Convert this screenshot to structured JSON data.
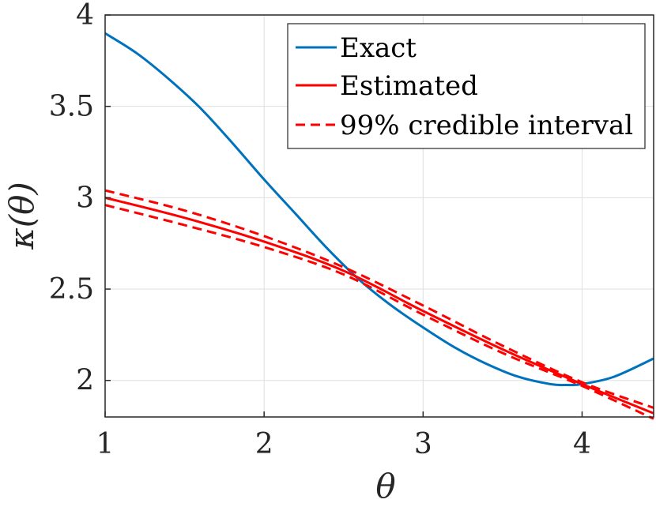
{
  "chart_data": {
    "type": "line",
    "title": "",
    "xlabel": "θ",
    "ylabel": "κ(θ)",
    "xlim": [
      1,
      4.45
    ],
    "ylim": [
      1.8,
      4
    ],
    "xticks": [
      1,
      2,
      3,
      4
    ],
    "yticks": [
      2,
      2.5,
      3,
      3.5,
      4
    ],
    "xtick_labels": [
      "1",
      "2",
      "3",
      "4"
    ],
    "ytick_labels": [
      "2",
      "2.5",
      "3",
      "3.5",
      "4"
    ],
    "grid": true,
    "legend_position": "top-right",
    "series": [
      {
        "name": "Exact",
        "color": "#0072BD",
        "style": "solid",
        "x": [
          1.0,
          1.2,
          1.4,
          1.6,
          1.8,
          2.0,
          2.2,
          2.4,
          2.6,
          2.8,
          3.0,
          3.2,
          3.4,
          3.6,
          3.8,
          3.9,
          4.0,
          4.2,
          4.45
        ],
        "y": [
          3.9,
          3.79,
          3.65,
          3.49,
          3.3,
          3.1,
          2.91,
          2.72,
          2.55,
          2.41,
          2.29,
          2.18,
          2.09,
          2.02,
          1.98,
          1.975,
          1.98,
          2.02,
          2.12
        ]
      },
      {
        "name": "Estimated",
        "color": "#FF0000",
        "style": "solid",
        "x": [
          1.0,
          1.5,
          2.0,
          2.5,
          3.0,
          3.5,
          4.0,
          4.45
        ],
        "y": [
          3.0,
          2.89,
          2.76,
          2.6,
          2.38,
          2.17,
          1.98,
          1.82
        ]
      },
      {
        "name": "99% credible interval",
        "color": "#FF0000",
        "style": "dashed",
        "x": [
          1.0,
          1.5,
          2.0,
          2.5,
          3.0,
          3.5,
          4.0,
          4.45
        ],
        "y": [
          3.04,
          2.93,
          2.79,
          2.62,
          2.41,
          2.19,
          1.99,
          1.85
        ]
      },
      {
        "name": "",
        "color": "#FF0000",
        "style": "dashed",
        "x": [
          1.0,
          1.5,
          2.0,
          2.5,
          3.0,
          3.5,
          4.0,
          4.45
        ],
        "y": [
          2.96,
          2.85,
          2.73,
          2.58,
          2.36,
          2.15,
          1.97,
          1.79
        ]
      }
    ],
    "legend": [
      "Exact",
      "Estimated",
      "99% credible interval"
    ]
  }
}
